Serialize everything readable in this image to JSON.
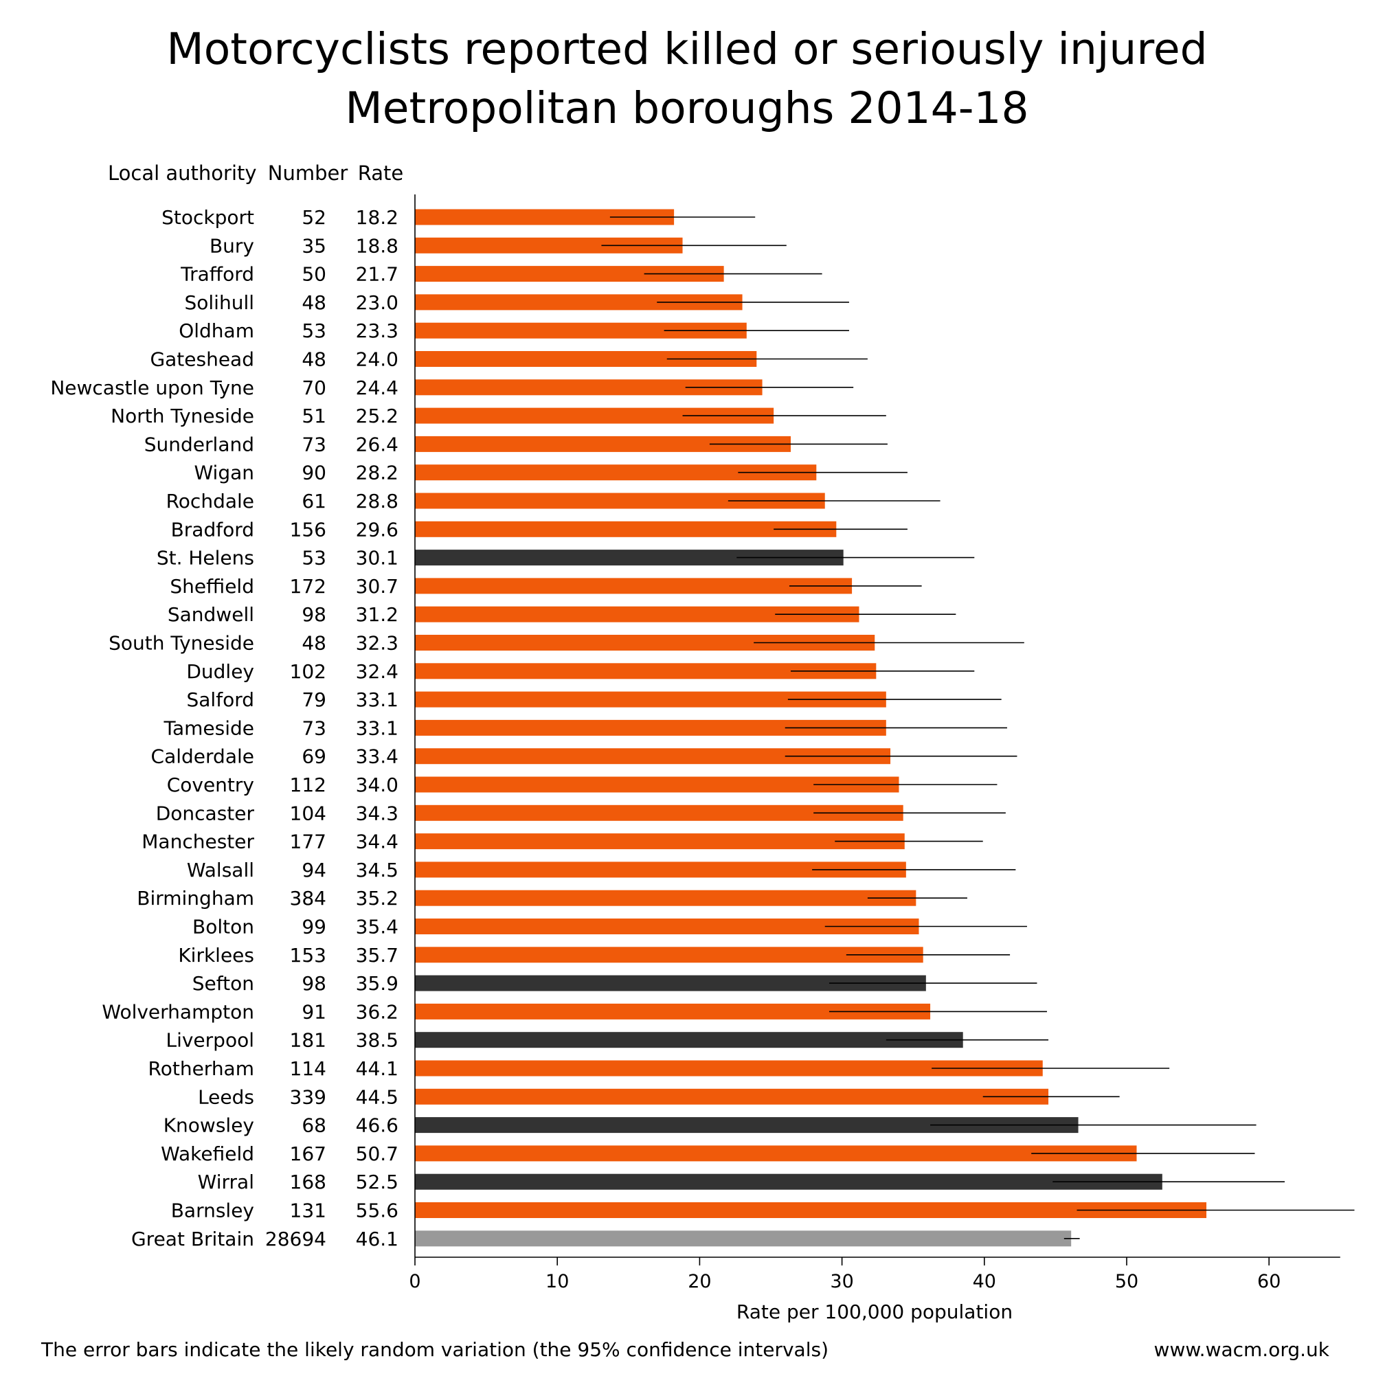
{
  "chart_data": {
    "type": "bar",
    "orientation": "horizontal",
    "title": [
      "Motorcyclists reported killed or seriously injured",
      "Metropolitan boroughs 2014-18"
    ],
    "table_headers": {
      "authority": "Local authority",
      "number": "Number",
      "rate": "Rate"
    },
    "xlabel": "Rate per 100,000 population",
    "xlim": [
      0,
      65
    ],
    "xticks": [
      0,
      10,
      20,
      30,
      40,
      50,
      60
    ],
    "colors": {
      "highlight": "#f05a0a",
      "dark": "#333333",
      "reference": "#999999",
      "error_bar": "#000000"
    },
    "rows": [
      {
        "name": "Stockport",
        "number": "52",
        "rate": 18.2,
        "ci": [
          13.7,
          23.9
        ],
        "color": "highlight"
      },
      {
        "name": "Bury",
        "number": "35",
        "rate": 18.8,
        "ci": [
          13.1,
          26.1
        ],
        "color": "highlight"
      },
      {
        "name": "Trafford",
        "number": "50",
        "rate": 21.7,
        "ci": [
          16.1,
          28.6
        ],
        "color": "highlight"
      },
      {
        "name": "Solihull",
        "number": "48",
        "rate": 23.0,
        "ci": [
          17.0,
          30.5
        ],
        "color": "highlight"
      },
      {
        "name": "Oldham",
        "number": "53",
        "rate": 23.3,
        "ci": [
          17.5,
          30.5
        ],
        "color": "highlight"
      },
      {
        "name": "Gateshead",
        "number": "48",
        "rate": 24.0,
        "ci": [
          17.7,
          31.8
        ],
        "color": "highlight"
      },
      {
        "name": "Newcastle upon Tyne",
        "number": "70",
        "rate": 24.4,
        "ci": [
          19.0,
          30.8
        ],
        "color": "highlight"
      },
      {
        "name": "North Tyneside",
        "number": "51",
        "rate": 25.2,
        "ci": [
          18.8,
          33.1
        ],
        "color": "highlight"
      },
      {
        "name": "Sunderland",
        "number": "73",
        "rate": 26.4,
        "ci": [
          20.7,
          33.2
        ],
        "color": "highlight"
      },
      {
        "name": "Wigan",
        "number": "90",
        "rate": 28.2,
        "ci": [
          22.7,
          34.6
        ],
        "color": "highlight"
      },
      {
        "name": "Rochdale",
        "number": "61",
        "rate": 28.8,
        "ci": [
          22.0,
          36.9
        ],
        "color": "highlight"
      },
      {
        "name": "Bradford",
        "number": "156",
        "rate": 29.6,
        "ci": [
          25.2,
          34.6
        ],
        "color": "highlight"
      },
      {
        "name": "St. Helens",
        "number": "53",
        "rate": 30.1,
        "ci": [
          22.6,
          39.3
        ],
        "color": "dark"
      },
      {
        "name": "Sheffield",
        "number": "172",
        "rate": 30.7,
        "ci": [
          26.3,
          35.6
        ],
        "color": "highlight"
      },
      {
        "name": "Sandwell",
        "number": "98",
        "rate": 31.2,
        "ci": [
          25.3,
          38.0
        ],
        "color": "highlight"
      },
      {
        "name": "South Tyneside",
        "number": "48",
        "rate": 32.3,
        "ci": [
          23.8,
          42.8
        ],
        "color": "highlight"
      },
      {
        "name": "Dudley",
        "number": "102",
        "rate": 32.4,
        "ci": [
          26.4,
          39.3
        ],
        "color": "highlight"
      },
      {
        "name": "Salford",
        "number": "79",
        "rate": 33.1,
        "ci": [
          26.2,
          41.2
        ],
        "color": "highlight"
      },
      {
        "name": "Tameside",
        "number": "73",
        "rate": 33.1,
        "ci": [
          26.0,
          41.6
        ],
        "color": "highlight"
      },
      {
        "name": "Calderdale",
        "number": "69",
        "rate": 33.4,
        "ci": [
          26.0,
          42.3
        ],
        "color": "highlight"
      },
      {
        "name": "Coventry",
        "number": "112",
        "rate": 34.0,
        "ci": [
          28.0,
          40.9
        ],
        "color": "highlight"
      },
      {
        "name": "Doncaster",
        "number": "104",
        "rate": 34.3,
        "ci": [
          28.0,
          41.5
        ],
        "color": "highlight"
      },
      {
        "name": "Manchester",
        "number": "177",
        "rate": 34.4,
        "ci": [
          29.5,
          39.9
        ],
        "color": "highlight"
      },
      {
        "name": "Walsall",
        "number": "94",
        "rate": 34.5,
        "ci": [
          27.9,
          42.2
        ],
        "color": "highlight"
      },
      {
        "name": "Birmingham",
        "number": "384",
        "rate": 35.2,
        "ci": [
          31.8,
          38.8
        ],
        "color": "highlight"
      },
      {
        "name": "Bolton",
        "number": "99",
        "rate": 35.4,
        "ci": [
          28.8,
          43.0
        ],
        "color": "highlight"
      },
      {
        "name": "Kirklees",
        "number": "153",
        "rate": 35.7,
        "ci": [
          30.3,
          41.8
        ],
        "color": "highlight"
      },
      {
        "name": "Sefton",
        "number": "98",
        "rate": 35.9,
        "ci": [
          29.1,
          43.7
        ],
        "color": "dark"
      },
      {
        "name": "Wolverhampton",
        "number": "91",
        "rate": 36.2,
        "ci": [
          29.1,
          44.4
        ],
        "color": "highlight"
      },
      {
        "name": "Liverpool",
        "number": "181",
        "rate": 38.5,
        "ci": [
          33.1,
          44.5
        ],
        "color": "dark"
      },
      {
        "name": "Rotherham",
        "number": "114",
        "rate": 44.1,
        "ci": [
          36.3,
          53.0
        ],
        "color": "highlight"
      },
      {
        "name": "Leeds",
        "number": "339",
        "rate": 44.5,
        "ci": [
          39.9,
          49.5
        ],
        "color": "highlight"
      },
      {
        "name": "Knowsley",
        "number": "68",
        "rate": 46.6,
        "ci": [
          36.2,
          59.1
        ],
        "color": "dark"
      },
      {
        "name": "Wakefield",
        "number": "167",
        "rate": 50.7,
        "ci": [
          43.3,
          59.0
        ],
        "color": "highlight"
      },
      {
        "name": "Wirral",
        "number": "168",
        "rate": 52.5,
        "ci": [
          44.8,
          61.1
        ],
        "color": "dark"
      },
      {
        "name": "Barnsley",
        "number": "131",
        "rate": 55.6,
        "ci": [
          46.5,
          66.0
        ],
        "color": "highlight"
      },
      {
        "name": "Great Britain",
        "number": "28694",
        "rate": 46.1,
        "ci": [
          45.6,
          46.7
        ],
        "color": "reference"
      }
    ]
  },
  "footer": {
    "note": "The error bars indicate the likely random variation (the 95% confidence intervals)",
    "source": "www.wacm.org.uk"
  }
}
